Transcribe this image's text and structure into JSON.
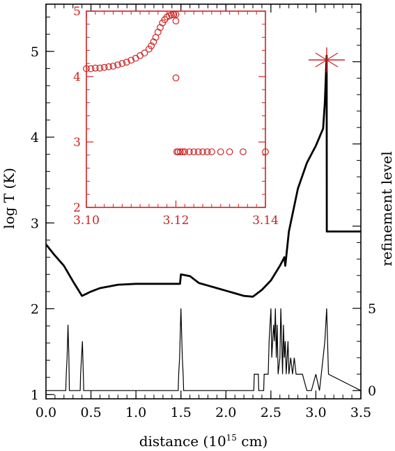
{
  "chart_data": [
    {
      "type": "line",
      "xlabel": "distance (10",
      "xlabel_sup": "15",
      "xlabel_tail": " cm)",
      "ylabel": "log T (K)",
      "y2label": "refinement level",
      "xlim": [
        0.0,
        3.5
      ],
      "ylim": [
        0.95,
        5.55
      ],
      "y2lim": [
        -0.5,
        23.5
      ],
      "x_ticks": [
        "0.0",
        "0.5",
        "1.0",
        "1.5",
        "2.0",
        "2.5",
        "3.0",
        "3.5"
      ],
      "x_tick_values": [
        0.0,
        0.5,
        1.0,
        1.5,
        2.0,
        2.5,
        3.0,
        3.5
      ],
      "y_ticks": [
        "1",
        "2",
        "3",
        "4",
        "5"
      ],
      "y_tick_values": [
        1,
        2,
        3,
        4,
        5
      ],
      "y2_ticks": [
        "0",
        "5"
      ],
      "y2_tick_values": [
        0,
        5
      ],
      "series": [
        {
          "x": [
            0.0,
            0.1,
            0.2,
            0.3,
            0.4,
            0.5,
            0.6,
            0.8,
            1.0,
            1.2,
            1.4,
            1.49,
            1.5,
            1.6,
            1.7,
            1.8,
            1.9,
            2.0,
            2.1,
            2.2,
            2.3,
            2.4,
            2.5,
            2.6,
            2.65,
            2.66,
            2.7,
            2.8,
            2.9,
            3.0,
            3.08,
            3.1,
            3.12,
            3.121,
            3.2,
            3.5
          ],
          "y": [
            2.75,
            2.62,
            2.5,
            2.32,
            2.15,
            2.2,
            2.24,
            2.28,
            2.29,
            2.29,
            2.29,
            2.29,
            2.4,
            2.38,
            2.3,
            2.27,
            2.24,
            2.21,
            2.18,
            2.15,
            2.14,
            2.22,
            2.33,
            2.5,
            2.6,
            2.5,
            2.9,
            3.4,
            3.7,
            3.9,
            4.1,
            4.4,
            4.95,
            2.9,
            2.9,
            2.9
          ]
        },
        {
          "x": [
            0.0,
            0.22,
            0.225,
            0.235,
            0.245,
            0.255,
            0.26,
            0.38,
            0.385,
            0.395,
            0.405,
            0.415,
            0.42,
            1.47,
            1.475,
            1.485,
            1.5,
            1.515,
            1.525,
            1.53,
            2.31,
            2.315,
            2.36,
            2.365,
            2.42,
            2.425,
            2.47,
            2.48,
            2.5,
            2.51,
            2.53,
            2.54,
            2.55,
            2.56,
            2.57,
            2.58,
            2.6,
            2.61,
            2.62,
            2.63,
            2.64,
            2.65,
            2.66,
            2.67,
            2.68,
            2.69,
            2.7,
            2.72,
            2.74,
            2.76,
            2.78,
            2.8,
            2.85,
            2.9,
            2.95,
            3.0,
            3.04,
            3.06,
            3.08,
            3.1,
            3.12,
            3.14,
            3.5
          ],
          "y": [
            0,
            0,
            1,
            2,
            4,
            2,
            0,
            0,
            1,
            2,
            3,
            1,
            0,
            0,
            1,
            2,
            5,
            2,
            1,
            0,
            0,
            1,
            1,
            0,
            0,
            1,
            1,
            3,
            5,
            2,
            4,
            3,
            5,
            2,
            4,
            1,
            2,
            5,
            3,
            1,
            4,
            2,
            3,
            1,
            2,
            3,
            1,
            2,
            1,
            2,
            1,
            1,
            1,
            0,
            0,
            1,
            0,
            1,
            2,
            3,
            5,
            1,
            0
          ]
        }
      ],
      "marker": {
        "x": 3.12,
        "y": 4.9
      }
    },
    {
      "type": "scatter",
      "xlim": [
        3.1,
        3.14
      ],
      "ylim": [
        2,
        5
      ],
      "x_ticks": [
        "3.10",
        "3.12",
        "3.14"
      ],
      "x_tick_values": [
        3.1,
        3.12,
        3.14
      ],
      "y_ticks": [
        "2",
        "3",
        "4",
        "5"
      ],
      "y_tick_values": [
        2,
        3,
        4,
        5
      ],
      "points_x": [
        3.1,
        3.101,
        3.102,
        3.103,
        3.104,
        3.105,
        3.106,
        3.107,
        3.108,
        3.109,
        3.11,
        3.111,
        3.112,
        3.113,
        3.114,
        3.1145,
        3.115,
        3.1155,
        3.116,
        3.1165,
        3.117,
        3.1175,
        3.118,
        3.1185,
        3.119,
        3.1195,
        3.12,
        3.12,
        3.12,
        3.1202,
        3.1205,
        3.121,
        3.1215,
        3.122,
        3.123,
        3.124,
        3.125,
        3.126,
        3.127,
        3.128,
        3.13,
        3.132,
        3.135,
        3.14
      ],
      "points_y": [
        4.12,
        4.12,
        4.13,
        4.13,
        4.14,
        4.15,
        4.16,
        4.18,
        4.2,
        4.22,
        4.25,
        4.28,
        4.32,
        4.36,
        4.42,
        4.47,
        4.53,
        4.6,
        4.68,
        4.75,
        4.82,
        4.87,
        4.91,
        4.93,
        4.94,
        4.95,
        4.95,
        4.85,
        3.98,
        2.85,
        2.85,
        2.85,
        2.85,
        2.85,
        2.85,
        2.85,
        2.85,
        2.85,
        2.85,
        2.85,
        2.85,
        2.85,
        2.85,
        2.85
      ]
    }
  ],
  "colors": {
    "main": "#000000",
    "inset": "#cc2222"
  }
}
